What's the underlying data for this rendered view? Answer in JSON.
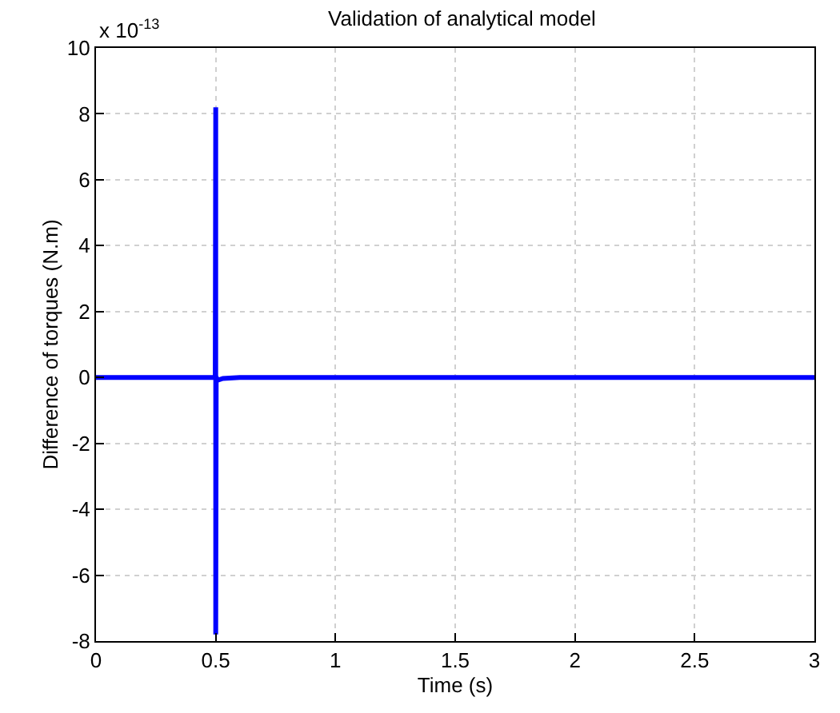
{
  "chart_data": {
    "type": "line",
    "title": "Validation of analytical model",
    "xlabel": "Time (s)",
    "ylabel": "Difference of torques (N.m)",
    "annotations": [
      "x 10$^{-13}$"
    ],
    "x": [
      0,
      0.49,
      0.498,
      0.5,
      0.5,
      0.502,
      0.51,
      0.53,
      0.6,
      1,
      3
    ],
    "series": [
      {
        "color": "#0000ff",
        "values": [
          0,
          0,
          0,
          8.2,
          -7.8,
          0,
          -0.08,
          -0.03,
          0,
          0,
          0
        ]
      }
    ],
    "xlim": [
      0,
      3
    ],
    "xticks": [
      0,
      0.5,
      1,
      1.5,
      2,
      2.5,
      3
    ],
    "ylim": [
      -8,
      10
    ],
    "yticks": [
      -8,
      -6,
      -4,
      -2,
      0,
      2,
      4,
      6,
      8,
      10
    ],
    "grid": true,
    "legend": false,
    "line_style": "solid",
    "marker": "none"
  }
}
